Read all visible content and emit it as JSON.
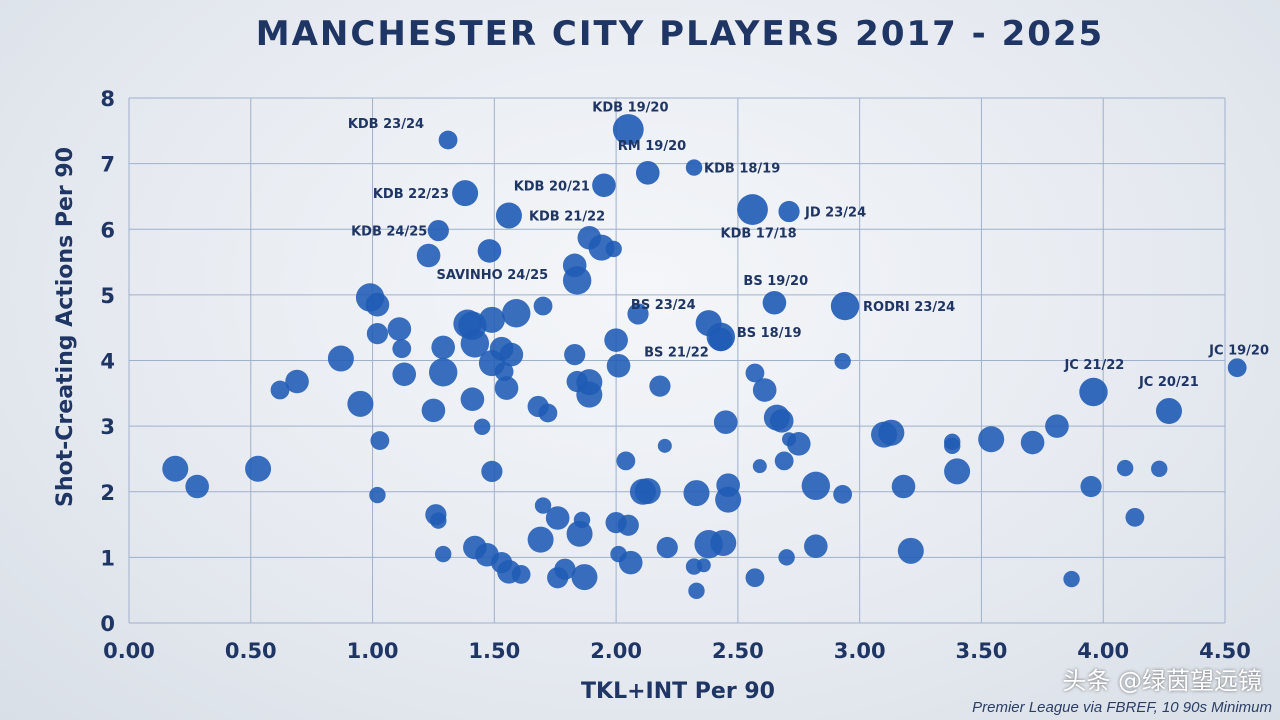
{
  "colors": {
    "accent": "#1f3564",
    "point": "#1f5bb5",
    "grid": "#9fb0cc"
  },
  "chart_data": {
    "type": "scatter",
    "title": "MANCHESTER CITY PLAYERS 2017 - 2025",
    "xlabel": "TKL+INT Per 90",
    "ylabel": "Shot-Creating Actions Per 90",
    "xlim": [
      0,
      4.5
    ],
    "ylim": [
      0,
      8
    ],
    "x_ticks": [
      "0.00",
      "0.50",
      "1.00",
      "1.50",
      "2.00",
      "2.50",
      "3.00",
      "3.50",
      "4.00",
      "4.50"
    ],
    "y_ticks": [
      "0",
      "1",
      "2",
      "3",
      "4",
      "5",
      "6",
      "7",
      "8"
    ],
    "grid": true,
    "marker_size_encoded": true,
    "labeled_points": [
      {
        "label": "KDB 19/20",
        "x": 2.05,
        "y": 7.52,
        "size": 1.3
      },
      {
        "label": "KDB 23/24",
        "x": 1.31,
        "y": 7.36,
        "size": 0.8
      },
      {
        "label": "RM 19/20",
        "x": 2.13,
        "y": 6.86,
        "size": 1.0
      },
      {
        "label": "KDB 18/19",
        "x": 2.32,
        "y": 6.94,
        "size": 0.7
      },
      {
        "label": "KDB 22/23",
        "x": 1.38,
        "y": 6.55,
        "size": 1.1
      },
      {
        "label": "KDB 20/21",
        "x": 1.95,
        "y": 6.67,
        "size": 1.0
      },
      {
        "label": "KDB 17/18",
        "x": 2.56,
        "y": 6.3,
        "size": 1.3
      },
      {
        "label": "JD 23/24",
        "x": 2.71,
        "y": 6.27,
        "size": 0.9
      },
      {
        "label": "KDB 21/22",
        "x": 1.56,
        "y": 6.21,
        "size": 1.1
      },
      {
        "label": "KDB 24/25",
        "x": 1.27,
        "y": 5.98,
        "size": 0.9
      },
      {
        "label": "SAVINHO 24/25",
        "x": 1.48,
        "y": 5.67,
        "size": 1.0
      },
      {
        "label": "BS 19/20",
        "x": 2.65,
        "y": 4.88,
        "size": 1.0
      },
      {
        "label": "RODRI 23/24",
        "x": 2.94,
        "y": 4.83,
        "size": 1.2
      },
      {
        "label": "BS 23/24",
        "x": 2.38,
        "y": 4.57,
        "size": 1.1
      },
      {
        "label": "BS 18/19",
        "x": 2.43,
        "y": 4.36,
        "size": 1.2
      },
      {
        "label": "BS 21/22",
        "x": 2.43,
        "y": 4.32,
        "size": 1.0
      },
      {
        "label": "JC 19/20",
        "x": 4.55,
        "y": 3.89,
        "size": 0.8
      },
      {
        "label": "JC 21/22",
        "x": 3.96,
        "y": 3.52,
        "size": 1.2
      },
      {
        "label": "JC 20/21",
        "x": 4.27,
        "y": 3.23,
        "size": 1.1
      }
    ],
    "points": [
      {
        "x": 1.89,
        "y": 5.87,
        "size": 1.0
      },
      {
        "x": 1.94,
        "y": 5.72,
        "size": 1.1
      },
      {
        "x": 1.99,
        "y": 5.7,
        "size": 0.7
      },
      {
        "x": 1.23,
        "y": 5.6,
        "size": 1.0
      },
      {
        "x": 1.83,
        "y": 5.45,
        "size": 1.0
      },
      {
        "x": 1.84,
        "y": 5.22,
        "size": 1.2
      },
      {
        "x": 0.99,
        "y": 4.96,
        "size": 1.2
      },
      {
        "x": 1.02,
        "y": 4.85,
        "size": 1.0
      },
      {
        "x": 1.7,
        "y": 4.83,
        "size": 0.8
      },
      {
        "x": 2.09,
        "y": 4.71,
        "size": 0.9
      },
      {
        "x": 1.59,
        "y": 4.72,
        "size": 1.2
      },
      {
        "x": 1.49,
        "y": 4.62,
        "size": 1.1
      },
      {
        "x": 1.39,
        "y": 4.56,
        "size": 1.2
      },
      {
        "x": 1.41,
        "y": 4.53,
        "size": 1.2
      },
      {
        "x": 1.11,
        "y": 4.48,
        "size": 1.0
      },
      {
        "x": 1.02,
        "y": 4.41,
        "size": 0.9
      },
      {
        "x": 1.42,
        "y": 4.26,
        "size": 1.2
      },
      {
        "x": 1.29,
        "y": 4.2,
        "size": 1.0
      },
      {
        "x": 1.12,
        "y": 4.18,
        "size": 0.8
      },
      {
        "x": 1.53,
        "y": 4.18,
        "size": 1.0
      },
      {
        "x": 2.0,
        "y": 4.31,
        "size": 1.0
      },
      {
        "x": 1.57,
        "y": 4.09,
        "size": 1.0
      },
      {
        "x": 0.87,
        "y": 4.03,
        "size": 1.1
      },
      {
        "x": 1.83,
        "y": 4.09,
        "size": 0.9
      },
      {
        "x": 1.49,
        "y": 3.96,
        "size": 1.1
      },
      {
        "x": 2.01,
        "y": 3.92,
        "size": 1.0
      },
      {
        "x": 1.29,
        "y": 3.82,
        "size": 1.2
      },
      {
        "x": 1.13,
        "y": 3.79,
        "size": 1.0
      },
      {
        "x": 1.54,
        "y": 3.83,
        "size": 0.8
      },
      {
        "x": 0.69,
        "y": 3.68,
        "size": 1.0
      },
      {
        "x": 1.84,
        "y": 3.68,
        "size": 0.9
      },
      {
        "x": 1.89,
        "y": 3.67,
        "size": 1.1
      },
      {
        "x": 2.18,
        "y": 3.61,
        "size": 0.9
      },
      {
        "x": 0.62,
        "y": 3.55,
        "size": 0.8
      },
      {
        "x": 1.55,
        "y": 3.58,
        "size": 1.0
      },
      {
        "x": 1.89,
        "y": 3.48,
        "size": 1.1
      },
      {
        "x": 1.41,
        "y": 3.41,
        "size": 1.0
      },
      {
        "x": 0.95,
        "y": 3.34,
        "size": 1.1
      },
      {
        "x": 1.68,
        "y": 3.3,
        "size": 0.9
      },
      {
        "x": 1.72,
        "y": 3.2,
        "size": 0.8
      },
      {
        "x": 1.25,
        "y": 3.24,
        "size": 1.0
      },
      {
        "x": 2.57,
        "y": 3.81,
        "size": 0.8
      },
      {
        "x": 2.61,
        "y": 3.55,
        "size": 1.0
      },
      {
        "x": 2.93,
        "y": 3.99,
        "size": 0.7
      },
      {
        "x": 2.45,
        "y": 3.06,
        "size": 1.0
      },
      {
        "x": 2.66,
        "y": 3.13,
        "size": 1.1
      },
      {
        "x": 2.68,
        "y": 3.08,
        "size": 1.0
      },
      {
        "x": 1.45,
        "y": 2.99,
        "size": 0.7
      },
      {
        "x": 1.03,
        "y": 2.78,
        "size": 0.8
      },
      {
        "x": 2.2,
        "y": 2.7,
        "size": 0.6
      },
      {
        "x": 2.71,
        "y": 2.8,
        "size": 0.6
      },
      {
        "x": 2.75,
        "y": 2.73,
        "size": 1.0
      },
      {
        "x": 3.1,
        "y": 2.87,
        "size": 1.1
      },
      {
        "x": 3.13,
        "y": 2.9,
        "size": 1.1
      },
      {
        "x": 3.38,
        "y": 2.76,
        "size": 0.7
      },
      {
        "x": 3.38,
        "y": 2.7,
        "size": 0.7
      },
      {
        "x": 3.54,
        "y": 2.8,
        "size": 1.1
      },
      {
        "x": 3.71,
        "y": 2.75,
        "size": 1.0
      },
      {
        "x": 3.81,
        "y": 3.0,
        "size": 1.0
      },
      {
        "x": 2.04,
        "y": 2.47,
        "size": 0.8
      },
      {
        "x": 2.69,
        "y": 2.47,
        "size": 0.8
      },
      {
        "x": 2.59,
        "y": 2.39,
        "size": 0.6
      },
      {
        "x": 0.19,
        "y": 2.35,
        "size": 1.1
      },
      {
        "x": 0.53,
        "y": 2.35,
        "size": 1.1
      },
      {
        "x": 1.49,
        "y": 2.31,
        "size": 0.9
      },
      {
        "x": 3.4,
        "y": 2.31,
        "size": 1.1
      },
      {
        "x": 4.09,
        "y": 2.36,
        "size": 0.7
      },
      {
        "x": 4.23,
        "y": 2.35,
        "size": 0.7
      },
      {
        "x": 0.28,
        "y": 2.08,
        "size": 1.0
      },
      {
        "x": 2.46,
        "y": 2.1,
        "size": 1.0
      },
      {
        "x": 2.82,
        "y": 2.09,
        "size": 1.2
      },
      {
        "x": 3.18,
        "y": 2.08,
        "size": 1.0
      },
      {
        "x": 3.95,
        "y": 2.08,
        "size": 0.9
      },
      {
        "x": 2.11,
        "y": 2.0,
        "size": 1.1
      },
      {
        "x": 2.13,
        "y": 2.01,
        "size": 1.1
      },
      {
        "x": 2.33,
        "y": 1.98,
        "size": 1.1
      },
      {
        "x": 1.02,
        "y": 1.95,
        "size": 0.7
      },
      {
        "x": 2.93,
        "y": 1.96,
        "size": 0.8
      },
      {
        "x": 2.46,
        "y": 1.88,
        "size": 1.1
      },
      {
        "x": 1.7,
        "y": 1.79,
        "size": 0.7
      },
      {
        "x": 1.26,
        "y": 1.65,
        "size": 0.9
      },
      {
        "x": 1.27,
        "y": 1.56,
        "size": 0.7
      },
      {
        "x": 1.76,
        "y": 1.6,
        "size": 1.0
      },
      {
        "x": 1.86,
        "y": 1.57,
        "size": 0.7
      },
      {
        "x": 4.13,
        "y": 1.61,
        "size": 0.8
      },
      {
        "x": 2.0,
        "y": 1.53,
        "size": 0.9
      },
      {
        "x": 2.05,
        "y": 1.49,
        "size": 0.9
      },
      {
        "x": 1.85,
        "y": 1.36,
        "size": 1.1
      },
      {
        "x": 1.69,
        "y": 1.27,
        "size": 1.1
      },
      {
        "x": 2.38,
        "y": 1.2,
        "size": 1.2
      },
      {
        "x": 2.44,
        "y": 1.22,
        "size": 1.1
      },
      {
        "x": 2.82,
        "y": 1.17,
        "size": 1.0
      },
      {
        "x": 1.42,
        "y": 1.15,
        "size": 1.0
      },
      {
        "x": 2.21,
        "y": 1.15,
        "size": 0.9
      },
      {
        "x": 3.21,
        "y": 1.1,
        "size": 1.1
      },
      {
        "x": 1.29,
        "y": 1.05,
        "size": 0.7
      },
      {
        "x": 1.47,
        "y": 1.04,
        "size": 1.0
      },
      {
        "x": 2.01,
        "y": 1.05,
        "size": 0.7
      },
      {
        "x": 2.7,
        "y": 1.0,
        "size": 0.7
      },
      {
        "x": 1.53,
        "y": 0.92,
        "size": 0.9
      },
      {
        "x": 2.06,
        "y": 0.92,
        "size": 1.0
      },
      {
        "x": 1.79,
        "y": 0.82,
        "size": 0.9
      },
      {
        "x": 2.32,
        "y": 0.86,
        "size": 0.7
      },
      {
        "x": 2.36,
        "y": 0.88,
        "size": 0.6
      },
      {
        "x": 1.56,
        "y": 0.78,
        "size": 1.0
      },
      {
        "x": 1.61,
        "y": 0.74,
        "size": 0.8
      },
      {
        "x": 1.76,
        "y": 0.69,
        "size": 0.9
      },
      {
        "x": 1.87,
        "y": 0.7,
        "size": 1.1
      },
      {
        "x": 2.57,
        "y": 0.69,
        "size": 0.8
      },
      {
        "x": 3.87,
        "y": 0.67,
        "size": 0.7
      },
      {
        "x": 2.33,
        "y": 0.49,
        "size": 0.7
      }
    ],
    "source": "Premier League via FBREF, 10 90s Minimum"
  },
  "watermark": "头条 @绿茵望远镜"
}
